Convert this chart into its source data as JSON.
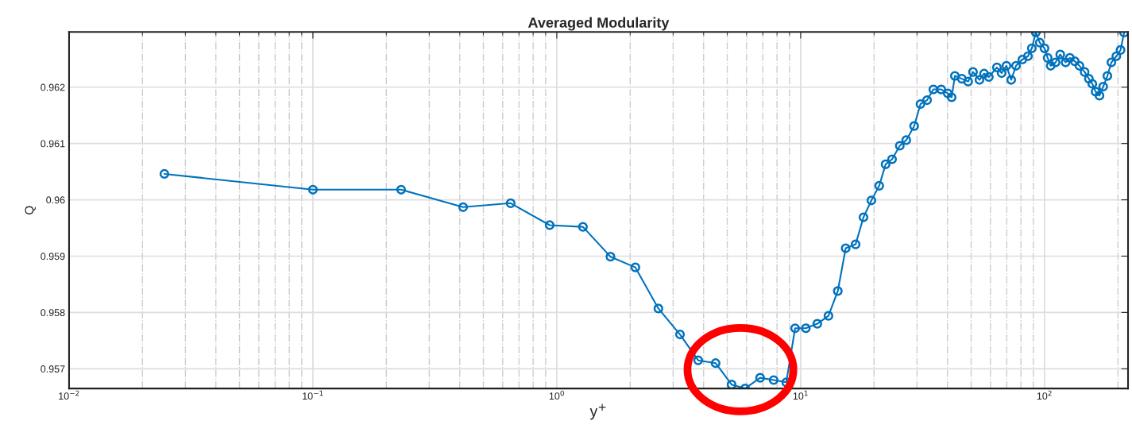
{
  "chart_data": {
    "type": "line",
    "title": "Averaged Modularity",
    "xlabel": "y$^{+}$",
    "ylabel": "Q",
    "log": "x",
    "grid": true,
    "marker": "circle",
    "line_style": "solid",
    "xlim": [
      0.01,
      220
    ],
    "ylim": [
      0.95665,
      0.96298
    ],
    "xticks": [
      {
        "value": 0.01,
        "label": "10$^{−2}$"
      },
      {
        "value": 0.1,
        "label": "10$^{−1}$"
      },
      {
        "value": 1,
        "label": "10$^{0}$"
      },
      {
        "value": 10,
        "label": "10$^{1}$"
      },
      {
        "value": 100,
        "label": "10$^{2}$"
      }
    ],
    "yticks": [
      0.957,
      0.958,
      0.959,
      0.96,
      0.961,
      0.962
    ],
    "series": [
      {
        "color": "#0072bd",
        "x": [
          0.0246,
          0.1,
          0.23,
          0.413,
          0.647,
          0.935,
          1.28,
          1.66,
          2.1,
          2.61,
          3.2,
          3.8,
          4.48,
          5.21,
          5.92,
          6.82,
          7.75,
          8.73,
          9.49,
          10.5,
          11.7,
          13.0,
          14.2,
          15.3,
          16.8,
          18.1,
          19.5,
          21.0,
          22.3,
          23.7,
          25.5,
          27.1,
          29.2,
          31.0,
          33.0,
          35.0,
          37.7,
          40.1,
          41.6,
          42.9,
          45.8,
          48.6,
          50.9,
          54.1,
          56.5,
          59.1,
          63.8,
          66.7,
          69.8,
          73.0,
          76.4,
          81.1,
          85.5,
          88.7,
          92.1,
          95.6,
          100,
          103,
          106,
          111,
          116,
          122,
          127,
          133,
          139,
          146,
          152,
          157,
          162,
          168,
          174,
          181,
          188,
          197,
          205,
          212
        ],
        "values": [
          0.96046,
          0.96018,
          0.96018,
          0.95987,
          0.95994,
          0.95955,
          0.95952,
          0.95899,
          0.9588,
          0.95807,
          0.95761,
          0.95715,
          0.9571,
          0.95672,
          0.95665,
          0.95684,
          0.9568,
          0.95676,
          0.95772,
          0.95772,
          0.9578,
          0.95794,
          0.95838,
          0.95914,
          0.95921,
          0.95969,
          0.95999,
          0.96025,
          0.96063,
          0.96072,
          0.96096,
          0.96106,
          0.96131,
          0.9617,
          0.96177,
          0.96196,
          0.96196,
          0.96189,
          0.96182,
          0.9622,
          0.96215,
          0.9621,
          0.96227,
          0.96213,
          0.96224,
          0.96218,
          0.96235,
          0.96225,
          0.96238,
          0.96213,
          0.96238,
          0.96249,
          0.96255,
          0.96269,
          0.96297,
          0.96279,
          0.96269,
          0.96252,
          0.96238,
          0.96244,
          0.96258,
          0.96244,
          0.96252,
          0.96246,
          0.96238,
          0.96227,
          0.96215,
          0.96206,
          0.96192,
          0.96185,
          0.96201,
          0.9622,
          0.96244,
          0.96255,
          0.96266,
          0.96297
        ]
      }
    ]
  }
}
